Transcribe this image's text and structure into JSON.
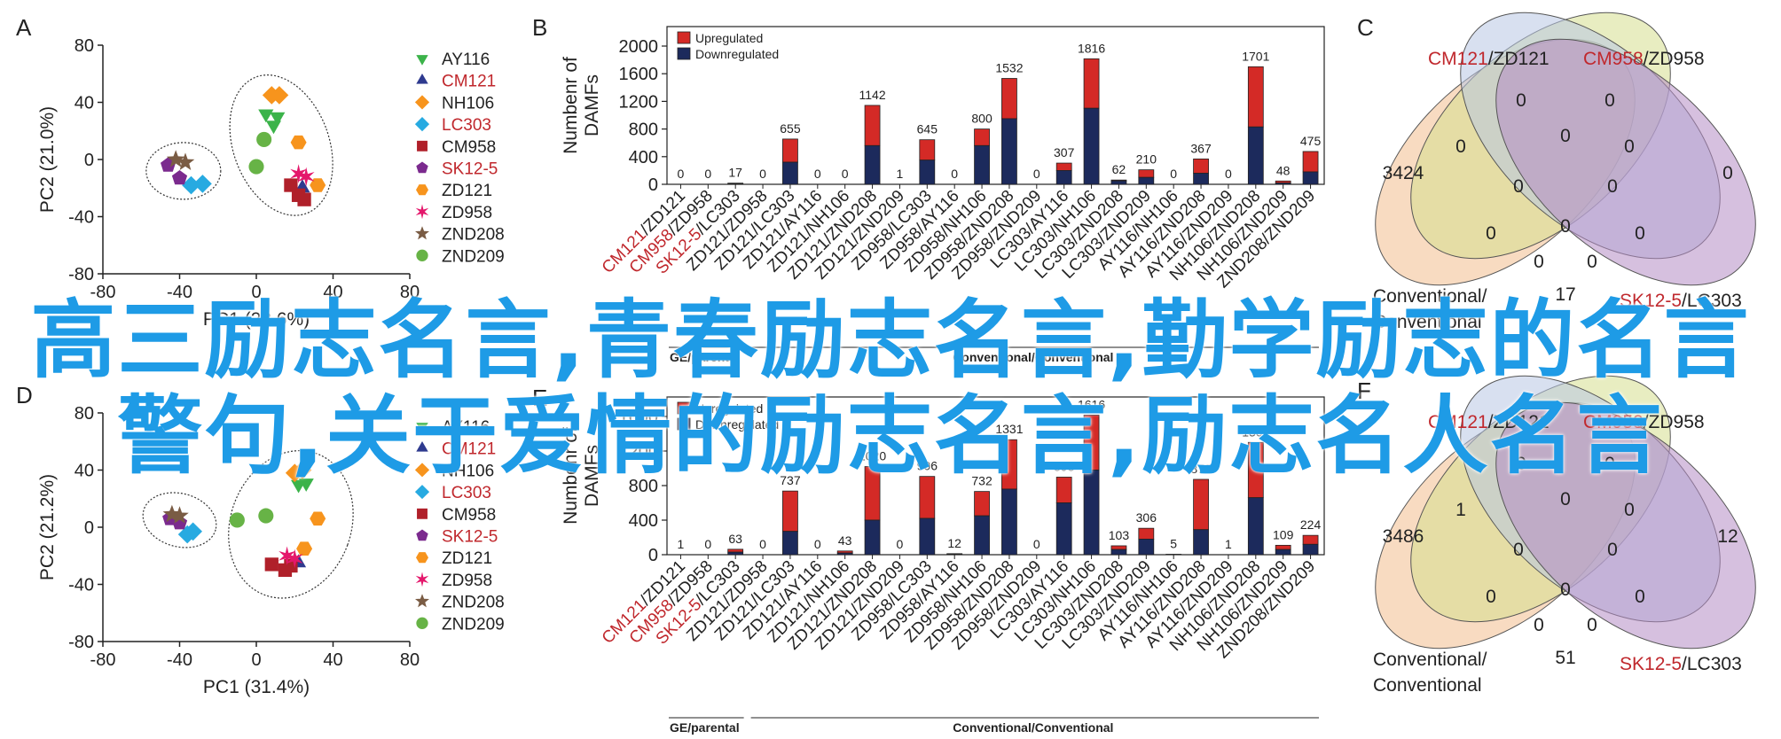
{
  "panels": [
    {
      "letter": "A",
      "type": "scatter",
      "xlabel": "PC1 (28.6%)",
      "ylabel": "PC2 (21.0%)",
      "xlim": [
        -80,
        80
      ],
      "ylim": [
        -80,
        80
      ],
      "xticks": [
        "-80",
        "-40",
        "0",
        "40",
        "80"
      ],
      "yticks": [
        "80",
        "40",
        "0",
        "-40",
        "-80"
      ],
      "points": [
        {
          "g": 0,
          "x": 5,
          "y": 32
        },
        {
          "g": 0,
          "x": 11,
          "y": 30
        },
        {
          "g": 0,
          "x": 9,
          "y": 24
        },
        {
          "g": 1,
          "x": 24,
          "y": -20
        },
        {
          "g": 2,
          "x": 8,
          "y": 45
        },
        {
          "g": 2,
          "x": 12,
          "y": 45
        },
        {
          "g": 3,
          "x": -34,
          "y": -18
        },
        {
          "g": 3,
          "x": -28,
          "y": -17
        },
        {
          "g": 4,
          "x": 18,
          "y": -18
        },
        {
          "g": 4,
          "x": 22,
          "y": -25
        },
        {
          "g": 4,
          "x": 25,
          "y": -28
        },
        {
          "g": 5,
          "x": -46,
          "y": -4
        },
        {
          "g": 5,
          "x": -40,
          "y": -13
        },
        {
          "g": 6,
          "x": 22,
          "y": 12
        },
        {
          "g": 6,
          "x": 32,
          "y": -18
        },
        {
          "g": 7,
          "x": 22,
          "y": -10
        },
        {
          "g": 7,
          "x": 26,
          "y": -12
        },
        {
          "g": 8,
          "x": -42,
          "y": 0
        },
        {
          "g": 8,
          "x": -37,
          "y": -2
        },
        {
          "g": 9,
          "x": 4,
          "y": 14
        },
        {
          "g": 9,
          "x": 0,
          "y": -5
        }
      ]
    },
    {
      "letter": "D",
      "type": "scatter",
      "xlabel": "PC1 (31.4%)",
      "ylabel": "PC2 (21.2%)",
      "xlim": [
        -80,
        80
      ],
      "ylim": [
        -80,
        80
      ],
      "xticks": [
        "-80",
        "-40",
        "0",
        "40",
        "80"
      ],
      "yticks": [
        "80",
        "40",
        "0",
        "-40",
        "-80"
      ],
      "points": [
        {
          "g": 0,
          "x": 22,
          "y": 30
        },
        {
          "g": 0,
          "x": 26,
          "y": 31
        },
        {
          "g": 1,
          "x": 22,
          "y": -25
        },
        {
          "g": 2,
          "x": 20,
          "y": 38
        },
        {
          "g": 2,
          "x": 24,
          "y": 40
        },
        {
          "g": 3,
          "x": -36,
          "y": -5
        },
        {
          "g": 3,
          "x": -33,
          "y": -3
        },
        {
          "g": 4,
          "x": 8,
          "y": -26
        },
        {
          "g": 4,
          "x": 15,
          "y": -30
        },
        {
          "g": 4,
          "x": 18,
          "y": -27
        },
        {
          "g": 5,
          "x": -45,
          "y": 6
        },
        {
          "g": 5,
          "x": -40,
          "y": 3
        },
        {
          "g": 6,
          "x": 25,
          "y": -15
        },
        {
          "g": 6,
          "x": 32,
          "y": 6
        },
        {
          "g": 7,
          "x": 16,
          "y": -20
        },
        {
          "g": 7,
          "x": 20,
          "y": -22
        },
        {
          "g": 8,
          "x": -44,
          "y": 9
        },
        {
          "g": 8,
          "x": -40,
          "y": 8
        },
        {
          "g": 9,
          "x": -10,
          "y": 5
        },
        {
          "g": 9,
          "x": 5,
          "y": 8
        }
      ]
    }
  ],
  "legend": [
    {
      "label": "AY116",
      "color": "#3bb34a",
      "shape": "tri-down",
      "red": false
    },
    {
      "label": "CM121",
      "color": "#2e3a8f",
      "shape": "tri-up",
      "red": true
    },
    {
      "label": "NH106",
      "color": "#f7941d",
      "shape": "diamond",
      "red": false
    },
    {
      "label": "LC303",
      "color": "#27aae1",
      "shape": "diamond",
      "red": true
    },
    {
      "label": "CM958",
      "color": "#b0202a",
      "shape": "square",
      "red": false
    },
    {
      "label": "SK12-5",
      "color": "#7b2a8e",
      "shape": "pentagon",
      "red": true
    },
    {
      "label": "ZD121",
      "color": "#f7941d",
      "shape": "hexagon",
      "red": false
    },
    {
      "label": "ZD958",
      "color": "#e4176b",
      "shape": "star4",
      "red": false
    },
    {
      "label": "ZND208",
      "color": "#7a5c44",
      "shape": "star5",
      "red": false
    },
    {
      "label": "ZND209",
      "color": "#67b346",
      "shape": "circle",
      "red": false
    }
  ],
  "chart_data": [
    {
      "letter": "B",
      "type": "bar",
      "ylabel": "Numbenr of DAMFs",
      "ylim": [
        0,
        2000
      ],
      "yticks": [
        "2000",
        "1600",
        "1200",
        "800",
        "400",
        "0"
      ],
      "series": [
        {
          "name": "Upregulated",
          "color": "#d42a26"
        },
        {
          "name": "Downregulated",
          "color": "#1c2a5c"
        }
      ],
      "categories": [
        {
          "red": "CM121",
          "black": "/ZD121"
        },
        {
          "red": "CM958",
          "black": "/ZD958"
        },
        {
          "red": "SK12-5",
          "black": "/LC303"
        },
        {
          "red": "",
          "black": "ZD121/ZD958"
        },
        {
          "red": "",
          "black": "ZD121/LC303"
        },
        {
          "red": "",
          "black": "ZD121/AY116"
        },
        {
          "red": "",
          "black": "ZD121/NH106"
        },
        {
          "red": "",
          "black": "ZD121/ZND208"
        },
        {
          "red": "",
          "black": "ZD121/ZND209"
        },
        {
          "red": "",
          "black": "ZD958/LC303"
        },
        {
          "red": "",
          "black": "ZD958/AY116"
        },
        {
          "red": "",
          "black": "ZD958/NH106"
        },
        {
          "red": "",
          "black": "ZD958/ZND208"
        },
        {
          "red": "",
          "black": "ZD958/ZND209"
        },
        {
          "red": "",
          "black": "LC303/AY116"
        },
        {
          "red": "",
          "black": "LC303/NH106"
        },
        {
          "red": "",
          "black": "LC303/ZND208"
        },
        {
          "red": "",
          "black": "LC303/ZND209"
        },
        {
          "red": "",
          "black": "AY116/NH106"
        },
        {
          "red": "",
          "black": "AY116/ZND208"
        },
        {
          "red": "",
          "black": "AY116/ZND209"
        },
        {
          "red": "",
          "black": "NH106/ZND208"
        },
        {
          "red": "",
          "black": "NH106/ZND209"
        },
        {
          "red": "",
          "black": "ZND208/ZND209"
        }
      ],
      "totals": [
        0,
        0,
        17,
        0,
        655,
        0,
        0,
        1142,
        1,
        645,
        0,
        800,
        1532,
        0,
        307,
        1816,
        62,
        210,
        0,
        367,
        0,
        1701,
        48,
        475
      ],
      "down": [
        0,
        0,
        10,
        0,
        320,
        0,
        0,
        560,
        0,
        350,
        0,
        560,
        950,
        0,
        200,
        1100,
        50,
        100,
        0,
        160,
        0,
        830,
        20,
        180
      ],
      "groups": [
        {
          "label": "GE/parental",
          "from": 0,
          "to": 2
        },
        {
          "label": "Conventional/Conventional",
          "from": 3,
          "to": 23
        }
      ]
    },
    {
      "letter": "E",
      "type": "bar",
      "ylabel": "Numbenr of DAMFs",
      "ylim": [
        0,
        1600
      ],
      "yticks": [
        "1600",
        "1200",
        "800",
        "400",
        "0"
      ],
      "series": [
        {
          "name": "Upregulated",
          "color": "#d42a26"
        },
        {
          "name": "Downregulated",
          "color": "#1c2a5c"
        }
      ],
      "categories": [
        {
          "red": "CM121",
          "black": "/ZD121"
        },
        {
          "red": "CM958",
          "black": "/ZD958"
        },
        {
          "red": "SK12-5",
          "black": "/LC303"
        },
        {
          "red": "",
          "black": "ZD121/ZD958"
        },
        {
          "red": "",
          "black": "ZD121/LC303"
        },
        {
          "red": "",
          "black": "ZD121/AY116"
        },
        {
          "red": "",
          "black": "ZD121/NH106"
        },
        {
          "red": "",
          "black": "ZD121/ZND208"
        },
        {
          "red": "",
          "black": "ZD121/ZND209"
        },
        {
          "red": "",
          "black": "ZD958/LC303"
        },
        {
          "red": "",
          "black": "ZD958/AY116"
        },
        {
          "red": "",
          "black": "ZD958/NH106"
        },
        {
          "red": "",
          "black": "ZD958/ZND208"
        },
        {
          "red": "",
          "black": "ZD958/ZND209"
        },
        {
          "red": "",
          "black": "LC303/AY116"
        },
        {
          "red": "",
          "black": "LC303/NH106"
        },
        {
          "red": "",
          "black": "LC303/ZND208"
        },
        {
          "red": "",
          "black": "LC303/ZND209"
        },
        {
          "red": "",
          "black": "AY116/NH106"
        },
        {
          "red": "",
          "black": "AY116/ZND208"
        },
        {
          "red": "",
          "black": "AY116/ZND209"
        },
        {
          "red": "",
          "black": "NH106/ZND208"
        },
        {
          "red": "",
          "black": "NH106/ZND209"
        },
        {
          "red": "",
          "black": "ZND208/ZND209"
        }
      ],
      "totals": [
        1,
        0,
        63,
        0,
        737,
        0,
        43,
        1020,
        0,
        906,
        12,
        732,
        1331,
        0,
        898,
        1616,
        103,
        306,
        5,
        872,
        1,
        1300,
        109,
        224
      ],
      "down": [
        0,
        0,
        30,
        0,
        270,
        0,
        20,
        400,
        0,
        420,
        5,
        450,
        760,
        0,
        600,
        980,
        60,
        180,
        2,
        290,
        0,
        660,
        60,
        120
      ],
      "groups": [
        {
          "label": "GE/parental",
          "from": 0,
          "to": 2
        },
        {
          "label": "Conventional/Conventional",
          "from": 3,
          "to": 23
        }
      ]
    }
  ],
  "venns": [
    {
      "letter": "C",
      "sets": [
        {
          "red": "CM121",
          "black": "/ZD121",
          "color": "#f2be8e"
        },
        {
          "red": "CM958",
          "black": "/ZD958",
          "color": "#d6df8e"
        },
        {
          "red": "",
          "black": "Conventional/ Conventional",
          "color": "#b8c6e4"
        },
        {
          "red": "SK12-5",
          "black": "/LC303",
          "color": "#b58dc4"
        }
      ],
      "labels": {
        "top_left": "0",
        "top_right": "0",
        "left_outer": "3424",
        "right_outer": "0",
        "ab": "0",
        "bc": "0",
        "cd": "0",
        "abc": "0",
        "bcd": "0",
        "center": "0",
        "ad_left": "0",
        "ad_right": "0",
        "acd": "0",
        "abd": "0",
        "bottom": "17"
      }
    },
    {
      "letter": "F",
      "sets": [
        {
          "red": "CM121",
          "black": "/ZD121",
          "color": "#f2be8e"
        },
        {
          "red": "CM958",
          "black": "/ZD958",
          "color": "#d6df8e"
        },
        {
          "red": "",
          "black": "Conventional/ Conventional",
          "color": "#b8c6e4"
        },
        {
          "red": "SK12-5",
          "black": "/LC303",
          "color": "#b58dc4"
        }
      ],
      "labels": {
        "top_left": "0",
        "top_right": "0",
        "left_outer": "3486",
        "right_outer": "12",
        "ab": "1",
        "bc": "0",
        "cd": "0",
        "abc": "0",
        "bcd": "0",
        "center": "0",
        "ad_left": "0",
        "ad_right": "0",
        "acd": "0",
        "abd": "0",
        "bottom": "51"
      }
    }
  ],
  "overlay": {
    "line1": "高三励志名言,青春励志名言,勤学励志的名言",
    "line2": "警句,关于爱情的励志名言,励志名人名言"
  }
}
